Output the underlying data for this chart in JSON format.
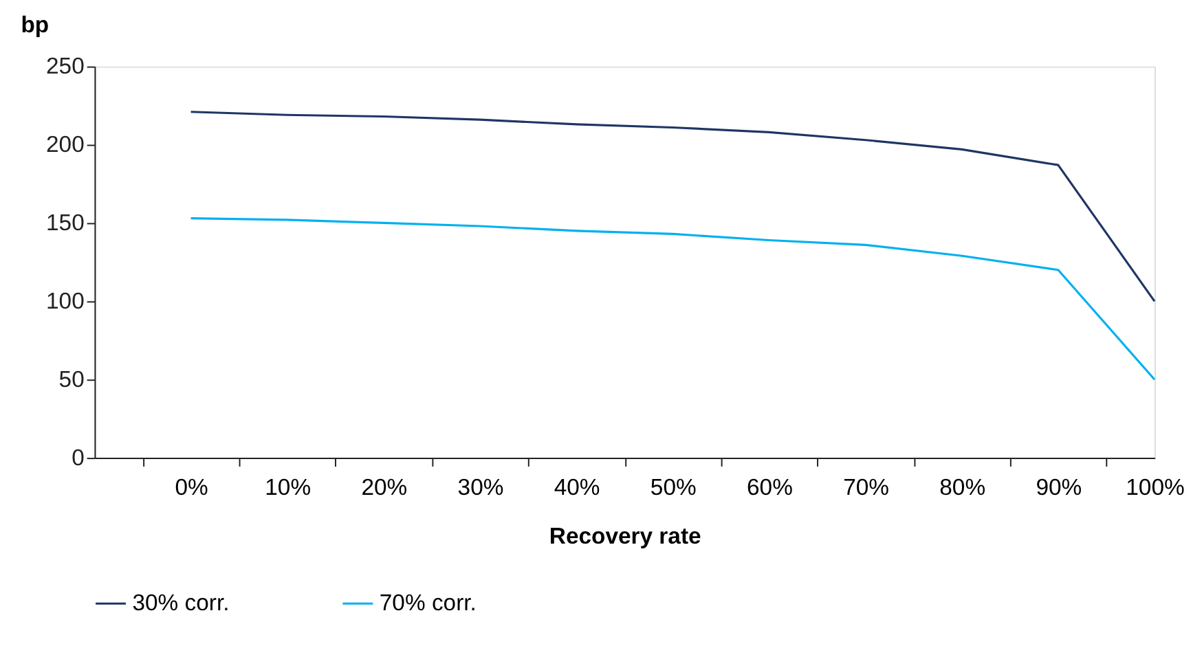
{
  "chart_data": {
    "type": "line",
    "xlabel": "Recovery rate",
    "ylabel": "bp",
    "categories": [
      "0%",
      "10%",
      "20%",
      "30%",
      "40%",
      "50%",
      "60%",
      "70%",
      "80%",
      "90%",
      "100%"
    ],
    "series": [
      {
        "name": "30% corr.",
        "color": "#1f3564",
        "values": [
          221,
          219,
          218,
          216,
          213,
          211,
          208,
          203,
          197,
          187,
          100
        ]
      },
      {
        "name": "70% corr.",
        "color": "#00b0f0",
        "values": [
          153,
          152,
          150,
          148,
          145,
          143,
          139,
          136,
          129,
          120,
          50
        ]
      }
    ],
    "ylim": [
      0,
      250
    ],
    "yticks": [
      0,
      50,
      100,
      150,
      200,
      250
    ],
    "grid": false,
    "legend": "bottom",
    "marker": "none",
    "line_style": "solid"
  }
}
